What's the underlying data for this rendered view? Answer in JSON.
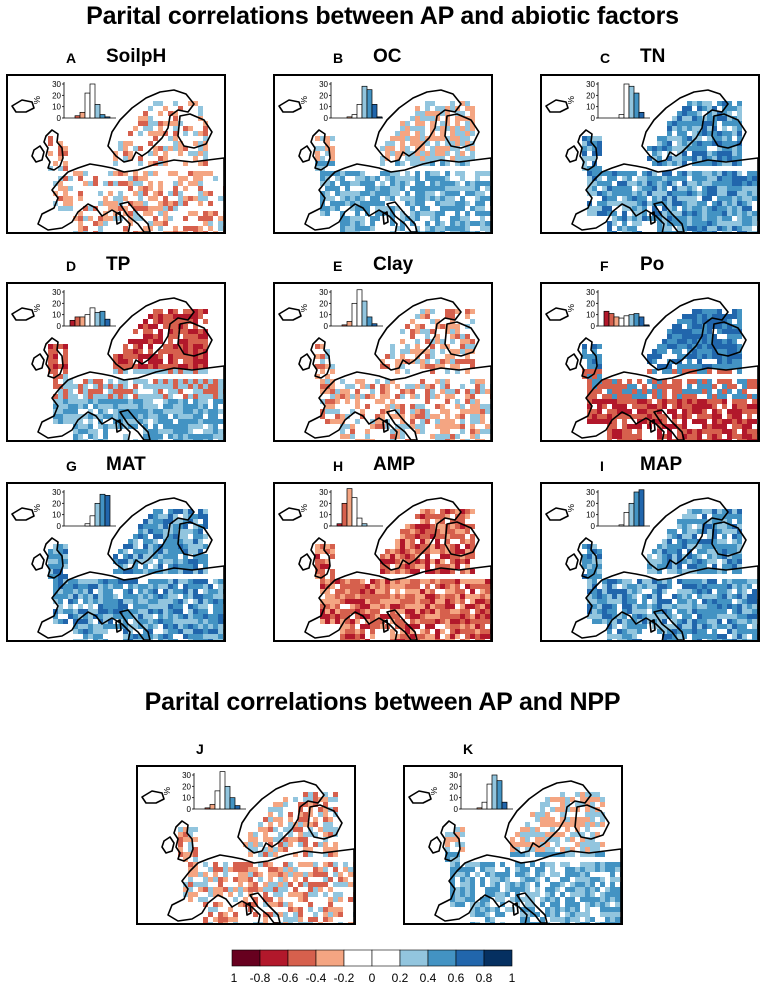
{
  "titles": {
    "abiotic": "Parital correlations between AP and abiotic factors",
    "npp": "Parital correlations between AP and NPP"
  },
  "hist_axis": {
    "ylabel": "%",
    "ticks": [
      "0",
      "10",
      "20",
      "30"
    ]
  },
  "panels": [
    {
      "letter": "A",
      "variable": "SoilpH",
      "hist": [
        0,
        0,
        2,
        5,
        22,
        30,
        12,
        3,
        1,
        0
      ],
      "pattern": "mixed_red"
    },
    {
      "letter": "B",
      "variable": "OC",
      "hist": [
        0,
        0,
        0,
        1,
        3,
        12,
        28,
        25,
        12,
        1
      ],
      "pattern": "blue_south"
    },
    {
      "letter": "C",
      "variable": "TN",
      "hist": [
        0,
        0,
        0,
        0,
        3,
        30,
        28,
        22,
        5,
        0
      ],
      "pattern": "blue_all"
    },
    {
      "letter": "D",
      "variable": "TP",
      "hist": [
        0,
        5,
        8,
        8,
        10,
        16,
        12,
        13,
        6,
        0
      ],
      "pattern": "red_north_blue_south"
    },
    {
      "letter": "E",
      "variable": "Clay",
      "hist": [
        0,
        0,
        1,
        4,
        20,
        32,
        22,
        8,
        2,
        0
      ],
      "pattern": "mixed_light"
    },
    {
      "letter": "F",
      "variable": "Po",
      "hist": [
        0,
        13,
        11,
        8,
        7,
        9,
        10,
        11,
        8,
        1
      ],
      "pattern": "red_south_blue_north"
    },
    {
      "letter": "G",
      "variable": "MAT",
      "hist": [
        0,
        0,
        0,
        0,
        2,
        9,
        20,
        28,
        27,
        0
      ],
      "pattern": "blue_all"
    },
    {
      "letter": "H",
      "variable": "AMP",
      "hist": [
        0,
        2,
        20,
        33,
        25,
        7,
        2,
        0,
        0,
        0
      ],
      "pattern": "red_all"
    },
    {
      "letter": "I",
      "variable": "MAP",
      "hist": [
        0,
        0,
        0,
        0,
        1,
        12,
        20,
        30,
        32,
        0
      ],
      "pattern": "blue_all"
    },
    {
      "letter": "J",
      "variable": "",
      "hist": [
        0,
        0,
        1,
        4,
        16,
        33,
        20,
        10,
        3,
        0
      ],
      "pattern": "mixed_light"
    },
    {
      "letter": "K",
      "variable": "",
      "hist": [
        0,
        0,
        0,
        1,
        6,
        22,
        30,
        25,
        6,
        0
      ],
      "pattern": "blue_south"
    }
  ],
  "colorbar": {
    "ticks": [
      "-1",
      "-0.8",
      "-0.6",
      "-0.4",
      "-0.2",
      "0",
      "0.2",
      "0.4",
      "0.6",
      "0.8",
      "1"
    ],
    "colors": [
      "#67001f",
      "#b2182b",
      "#d6604d",
      "#f4a582",
      "#ffffff",
      "#ffffff",
      "#92c5de",
      "#4393c3",
      "#2166ac",
      "#053061"
    ]
  }
}
